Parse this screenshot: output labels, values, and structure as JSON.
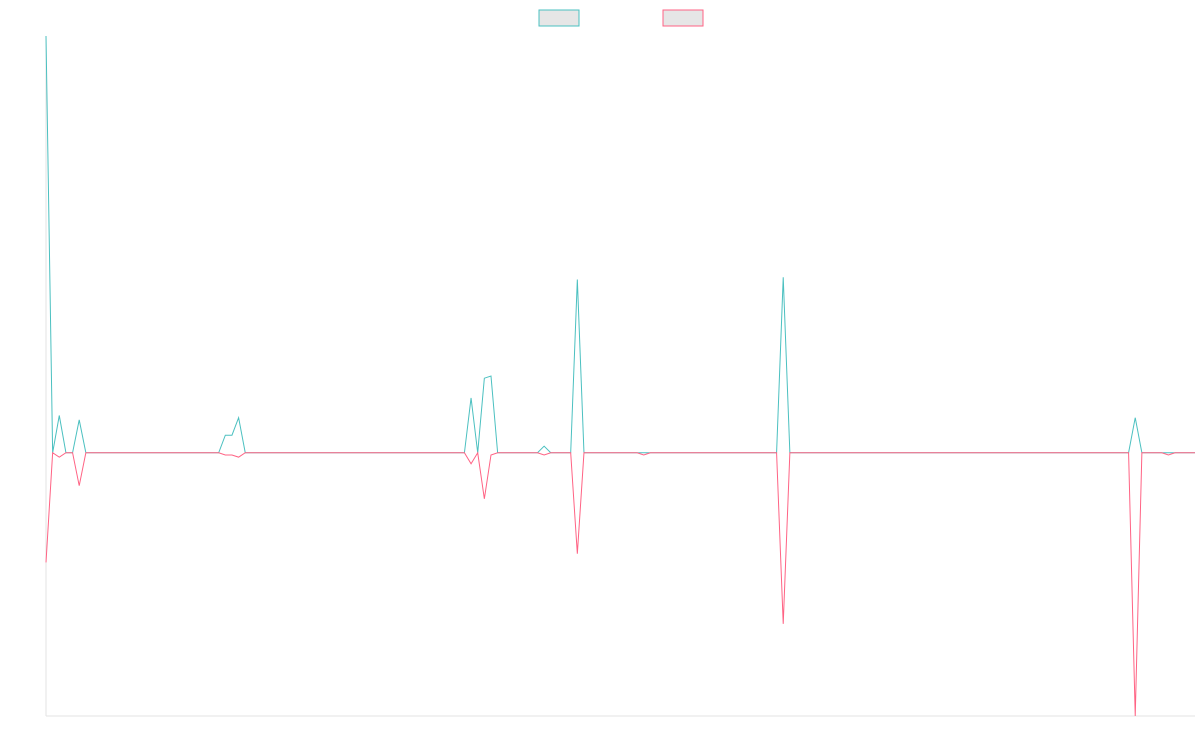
{
  "chart_data": {
    "type": "line",
    "title": "",
    "xlabel": "",
    "ylabel": "",
    "x_count": 174,
    "ylim": [
      -1.2,
      1.9
    ],
    "grid": false,
    "legend": {
      "placement": "top-center",
      "entries": [
        {
          "name": "",
          "color": "#4bc0c0"
        },
        {
          "name": "",
          "color": "#ff6384"
        }
      ]
    },
    "series": [
      {
        "name": "",
        "color": "#4bc0c0",
        "points": [
          [
            0,
            1.9
          ],
          [
            1,
            0.0
          ],
          [
            2,
            0.17
          ],
          [
            3,
            0.0
          ],
          [
            4,
            0.0
          ],
          [
            5,
            0.15
          ],
          [
            6,
            0.0
          ],
          [
            26,
            0.0
          ],
          [
            27,
            0.08
          ],
          [
            28,
            0.08
          ],
          [
            29,
            0.16
          ],
          [
            30,
            0.0
          ],
          [
            63,
            0.0
          ],
          [
            64,
            0.25
          ],
          [
            65,
            0.0
          ],
          [
            66,
            0.34
          ],
          [
            67,
            0.35
          ],
          [
            68,
            0.0
          ],
          [
            74,
            0.0
          ],
          [
            75,
            0.03
          ],
          [
            76,
            0.0
          ],
          [
            79,
            0.0
          ],
          [
            80,
            0.79
          ],
          [
            81,
            0.0
          ],
          [
            110,
            0.0
          ],
          [
            111,
            0.8
          ],
          [
            112,
            0.0
          ],
          [
            163,
            0.0
          ],
          [
            164,
            0.16
          ],
          [
            165,
            0.0
          ],
          [
            173,
            0.0
          ]
        ]
      },
      {
        "name": "",
        "color": "#ff6384",
        "points": [
          [
            0,
            -0.5
          ],
          [
            1,
            0.0
          ],
          [
            2,
            -0.02
          ],
          [
            3,
            0.0
          ],
          [
            4,
            0.0
          ],
          [
            5,
            -0.15
          ],
          [
            6,
            0.0
          ],
          [
            26,
            0.0
          ],
          [
            27,
            -0.01
          ],
          [
            28,
            -0.01
          ],
          [
            29,
            -0.02
          ],
          [
            30,
            0.0
          ],
          [
            63,
            0.0
          ],
          [
            64,
            -0.05
          ],
          [
            65,
            0.0
          ],
          [
            66,
            -0.21
          ],
          [
            67,
            -0.01
          ],
          [
            68,
            0.0
          ],
          [
            74,
            0.0
          ],
          [
            75,
            -0.01
          ],
          [
            76,
            0.0
          ],
          [
            79,
            0.0
          ],
          [
            80,
            -0.46
          ],
          [
            81,
            0.0
          ],
          [
            89,
            0.0
          ],
          [
            90,
            -0.01
          ],
          [
            91,
            0.0
          ],
          [
            110,
            0.0
          ],
          [
            111,
            -0.78
          ],
          [
            112,
            0.0
          ],
          [
            163,
            0.0
          ],
          [
            164,
            -1.2
          ],
          [
            165,
            0.0
          ],
          [
            168,
            0.0
          ],
          [
            169,
            -0.01
          ],
          [
            170,
            0.0
          ],
          [
            173,
            0.0
          ]
        ]
      }
    ]
  }
}
